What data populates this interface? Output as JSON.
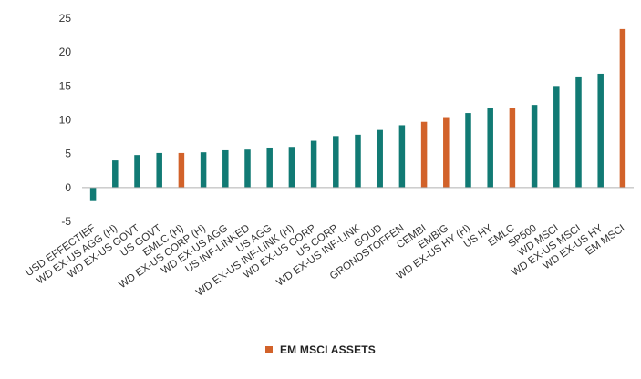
{
  "colors": {
    "default_bar": "#117a74",
    "highlight_bar": "#d2622a",
    "axis_text": "#333333",
    "axis_line": "#b0b0b0"
  },
  "chart_data": {
    "type": "bar",
    "title": "",
    "xlabel": "",
    "ylabel": "",
    "ylim": [
      -5,
      25
    ],
    "yticks": [
      -5,
      0,
      5,
      10,
      15,
      20,
      25
    ],
    "grid": false,
    "legend_position": "bottom",
    "categories": [
      "USD EFFECTIEF",
      "WD EX-US AGG (H)",
      "WD EX-US GOVT",
      "US GOVT",
      "EMLC (H)",
      "WD EX-US CORP (H)",
      "WD EX-US AGG",
      "US INF-LINKED",
      "US AGG",
      "WD EX-US INF-LINK (H)",
      "WD EX-US CORP",
      "US CORP",
      "WD EX-US INF-LINK",
      "GOUD",
      "GRONDSTOFFEN",
      "CEMBI",
      "EMBIG",
      "WD EX-US HY (H)",
      "US HY",
      "EMLC",
      "SP500",
      "WD MSCI",
      "WD EX-US MSCI",
      "WD EX-US HY",
      "EM MSCI"
    ],
    "values": [
      -2.0,
      4.0,
      4.8,
      5.1,
      5.1,
      5.2,
      5.5,
      5.6,
      5.9,
      6.0,
      6.9,
      7.6,
      7.8,
      8.5,
      9.2,
      9.7,
      10.4,
      11.0,
      11.7,
      11.8,
      12.2,
      15.0,
      16.4,
      16.8,
      23.4
    ],
    "highlight": [
      false,
      false,
      false,
      false,
      true,
      false,
      false,
      false,
      false,
      false,
      false,
      false,
      false,
      false,
      false,
      true,
      true,
      false,
      false,
      true,
      false,
      false,
      false,
      false,
      true
    ],
    "legend": [
      {
        "label": "EM MSCI ASSETS",
        "color": "#d2622a"
      }
    ]
  }
}
